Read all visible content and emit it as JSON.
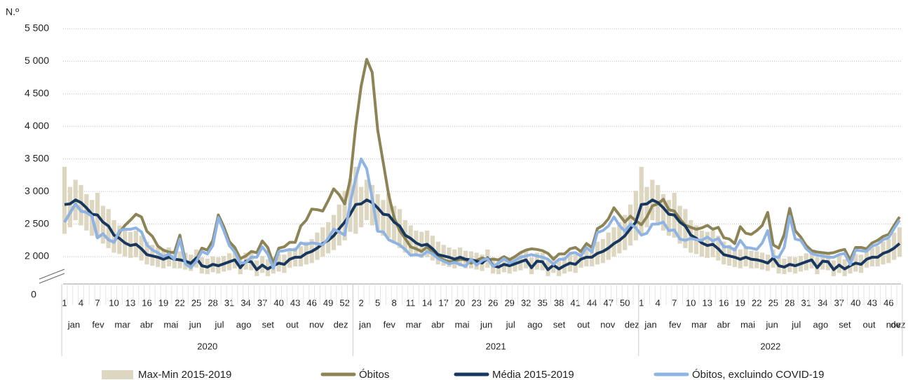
{
  "chart_data": {
    "type": "line",
    "y_unit_label": "N.º",
    "y_break_label": "0",
    "ylim": [
      1580,
      5500
    ],
    "yticks": [
      {
        "value": 2000,
        "label": "2 000"
      },
      {
        "value": 2500,
        "label": "2 500"
      },
      {
        "value": 3000,
        "label": "3 000"
      },
      {
        "value": 3500,
        "label": "3 500"
      },
      {
        "value": 4000,
        "label": "4 000"
      },
      {
        "value": 4500,
        "label": "4 500"
      },
      {
        "value": 5000,
        "label": "5 000"
      },
      {
        "value": 5500,
        "label": "5 500"
      }
    ],
    "grid": true,
    "years": [
      {
        "label": "2020",
        "weeks": [
          1,
          null,
          null,
          4,
          null,
          null,
          7,
          null,
          null,
          10,
          null,
          null,
          13,
          null,
          null,
          16,
          null,
          null,
          19,
          null,
          null,
          22,
          null,
          null,
          25,
          null,
          null,
          28,
          null,
          null,
          31,
          null,
          null,
          34,
          null,
          null,
          37,
          null,
          null,
          40,
          null,
          null,
          43,
          null,
          null,
          46,
          null,
          null,
          49,
          null,
          null,
          52,
          null
        ],
        "months": [
          "jan",
          "fev",
          "mar",
          "abr",
          "mai",
          "jun",
          "jul",
          "ago",
          "set",
          "out",
          "nov",
          "dez"
        ]
      },
      {
        "label": "2021",
        "weeks": [
          null,
          2,
          null,
          null,
          5,
          null,
          null,
          8,
          null,
          null,
          11,
          null,
          null,
          14,
          null,
          null,
          17,
          null,
          null,
          20,
          null,
          null,
          23,
          null,
          null,
          26,
          null,
          null,
          29,
          null,
          null,
          32,
          null,
          null,
          35,
          null,
          null,
          38,
          null,
          null,
          41,
          null,
          null,
          44,
          null,
          null,
          47,
          null,
          null,
          50,
          null,
          null
        ],
        "months": [
          "jan",
          "fev",
          "mar",
          "abr",
          "mai",
          "jun",
          "jul",
          "ago",
          "set",
          "out",
          "nov",
          "dez"
        ]
      },
      {
        "label": "2022",
        "weeks": [
          1,
          null,
          null,
          4,
          null,
          null,
          7,
          null,
          null,
          10,
          null,
          null,
          13,
          null,
          null,
          16,
          null,
          null,
          19,
          null,
          null,
          22,
          null,
          null,
          25,
          null,
          null,
          28,
          null,
          null,
          31,
          null,
          null,
          34,
          null,
          null,
          37,
          null,
          null,
          40,
          null,
          null,
          43,
          null,
          null,
          46,
          null,
          null
        ],
        "months": [
          "jan",
          "fev",
          "mar",
          "abr",
          "mai",
          "jun",
          "jul",
          "ago",
          "set",
          "out",
          "nov",
          "dez"
        ]
      }
    ],
    "series": [
      {
        "name": "Max-Min 2015-2019",
        "color": "#ddd6c1",
        "kind": "range",
        "high": [
          3380,
          3070,
          3180,
          3100,
          2960,
          2870,
          2980,
          2780,
          2730,
          2560,
          2480,
          2400,
          2380,
          2400,
          2320,
          2230,
          2180,
          2140,
          2110,
          2140,
          2090,
          2080,
          2060,
          2030,
          2110,
          1990,
          1970,
          2000,
          1990,
          2010,
          2050,
          2090,
          1990,
          2060,
          2060,
          1940,
          2010,
          1960,
          2000,
          2040,
          2030,
          2100,
          2140,
          2160,
          2230,
          2270,
          2370,
          2450,
          2530,
          2640,
          2800,
          3010,
          3200,
          3380,
          3070,
          3180,
          3100,
          2960,
          2870,
          2980,
          2780,
          2730,
          2560,
          2480,
          2400,
          2380,
          2400,
          2320,
          2230,
          2180,
          2140,
          2110,
          2140,
          2090,
          2080,
          2060,
          2030,
          2110,
          1990,
          1970,
          2000,
          1990,
          2010,
          2050,
          2090,
          1990,
          2060,
          2060,
          1940,
          2010,
          1960,
          2000,
          2040,
          2030,
          2100,
          2140,
          2160,
          2230,
          2270,
          2370,
          2450,
          2530,
          2640,
          2800,
          3010,
          3380,
          3070,
          3180,
          3100,
          2960,
          2870,
          2980,
          2780,
          2730,
          2560,
          2480,
          2400,
          2380,
          2400,
          2320,
          2230,
          2180,
          2140,
          2110,
          2140,
          2090,
          2080,
          2060,
          2030,
          2110,
          1990,
          1970,
          2000,
          1990,
          2010,
          2050,
          2090,
          1990,
          2060,
          2060,
          1940,
          2010,
          1960,
          2000,
          2040,
          2030,
          2100,
          2140,
          2160,
          2230,
          2270,
          2370,
          2450
        ],
        "low": [
          2350,
          2450,
          2560,
          2480,
          2400,
          2320,
          2290,
          2200,
          2130,
          2060,
          2040,
          2000,
          1980,
          1990,
          1940,
          1880,
          1860,
          1840,
          1820,
          1850,
          1820,
          1820,
          1800,
          1780,
          1830,
          1740,
          1730,
          1760,
          1740,
          1770,
          1790,
          1820,
          1730,
          1800,
          1790,
          1700,
          1750,
          1700,
          1740,
          1770,
          1750,
          1830,
          1850,
          1850,
          1880,
          1900,
          1950,
          2000,
          2050,
          2100,
          2170,
          2250,
          2380,
          2350,
          2450,
          2560,
          2480,
          2400,
          2320,
          2290,
          2200,
          2130,
          2060,
          2040,
          2000,
          1980,
          1990,
          1940,
          1880,
          1860,
          1840,
          1820,
          1850,
          1820,
          1820,
          1800,
          1780,
          1830,
          1740,
          1730,
          1760,
          1740,
          1770,
          1790,
          1820,
          1730,
          1800,
          1790,
          1700,
          1750,
          1700,
          1740,
          1770,
          1750,
          1830,
          1850,
          1850,
          1880,
          1900,
          1950,
          2000,
          2050,
          2100,
          2170,
          2250,
          2350,
          2450,
          2560,
          2480,
          2400,
          2320,
          2290,
          2200,
          2130,
          2060,
          2040,
          2000,
          1980,
          1990,
          1940,
          1880,
          1860,
          1840,
          1820,
          1850,
          1820,
          1820,
          1800,
          1780,
          1830,
          1740,
          1730,
          1760,
          1740,
          1770,
          1790,
          1820,
          1730,
          1800,
          1790,
          1700,
          1750,
          1700,
          1740,
          1770,
          1750,
          1830,
          1850,
          1850,
          1880,
          1900,
          1950,
          2000
        ]
      },
      {
        "name": "Óbitos",
        "color": "#8c8456",
        "values": [
          2530,
          2670,
          2810,
          2700,
          2680,
          2620,
          2290,
          2350,
          2260,
          2220,
          2370,
          2480,
          2560,
          2650,
          2610,
          2390,
          2310,
          2160,
          2100,
          2070,
          2060,
          2330,
          1930,
          1870,
          1960,
          2130,
          2100,
          2250,
          2640,
          2460,
          2230,
          2140,
          1970,
          2010,
          2080,
          2060,
          2240,
          2140,
          1890,
          2130,
          2150,
          2220,
          2220,
          2470,
          2560,
          2730,
          2720,
          2700,
          2860,
          3040,
          2950,
          2810,
          3180,
          4000,
          4620,
          5030,
          4830,
          3950,
          3450,
          2950,
          2600,
          2400,
          2280,
          2150,
          2120,
          2080,
          2150,
          2070,
          2000,
          1950,
          1920,
          1930,
          1960,
          1950,
          1900,
          1940,
          1980,
          1950,
          1960,
          1950,
          2000,
          1950,
          2000,
          2060,
          2100,
          2120,
          2110,
          2090,
          2050,
          1960,
          2040,
          2040,
          2120,
          2140,
          2080,
          2200,
          2140,
          2430,
          2480,
          2580,
          2750,
          2640,
          2530,
          2620,
          2550,
          2490,
          2610,
          2780,
          2810,
          2880,
          2720,
          2700,
          2580,
          2480,
          2450,
          2420,
          2440,
          2480,
          2420,
          2450,
          2290,
          2270,
          2200,
          2460,
          2360,
          2340,
          2400,
          2480,
          2680,
          2180,
          2130,
          2340,
          2740,
          2400,
          2300,
          2170,
          2090,
          2070,
          2060,
          2050,
          2060,
          2090,
          2110,
          1950,
          2140,
          2140,
          2120,
          2210,
          2250,
          2310,
          2340,
          2480,
          2610
        ]
      },
      {
        "name": "Média 2015-2019",
        "color": "#17375e",
        "values": [
          2800,
          2810,
          2870,
          2830,
          2750,
          2650,
          2640,
          2530,
          2470,
          2330,
          2280,
          2210,
          2170,
          2190,
          2120,
          2030,
          2010,
          1990,
          1960,
          1990,
          1960,
          1950,
          1930,
          1900,
          1980,
          1860,
          1840,
          1880,
          1860,
          1890,
          1920,
          1950,
          1830,
          1930,
          1920,
          1800,
          1870,
          1810,
          1860,
          1900,
          1880,
          1960,
          1990,
          1990,
          2050,
          2080,
          2130,
          2200,
          2250,
          2320,
          2430,
          2530,
          2650,
          2800,
          2810,
          2870,
          2830,
          2750,
          2650,
          2640,
          2530,
          2470,
          2330,
          2280,
          2210,
          2170,
          2190,
          2120,
          2030,
          2010,
          1990,
          1960,
          1990,
          1960,
          1950,
          1930,
          1900,
          1980,
          1860,
          1840,
          1880,
          1860,
          1890,
          1920,
          1950,
          1830,
          1930,
          1920,
          1800,
          1870,
          1810,
          1860,
          1900,
          1880,
          1960,
          1990,
          1990,
          2050,
          2080,
          2130,
          2200,
          2250,
          2320,
          2430,
          2530,
          2800,
          2810,
          2870,
          2830,
          2750,
          2650,
          2640,
          2530,
          2470,
          2330,
          2280,
          2210,
          2170,
          2190,
          2120,
          2030,
          2010,
          1990,
          1960,
          1990,
          1960,
          1950,
          1930,
          1900,
          1980,
          1860,
          1840,
          1880,
          1860,
          1890,
          1920,
          1950,
          1830,
          1930,
          1920,
          1800,
          1870,
          1810,
          1860,
          1900,
          1880,
          1960,
          1990,
          1990,
          2050,
          2080,
          2130,
          2200
        ]
      },
      {
        "name": "Óbitos, excluindo COVID-19",
        "color": "#8fb4e3",
        "values": [
          2530,
          2670,
          2810,
          2700,
          2680,
          2620,
          2290,
          2350,
          2260,
          2220,
          2400,
          2420,
          2420,
          2440,
          2380,
          2180,
          2100,
          2060,
          2000,
          2040,
          1960,
          2270,
          1890,
          1830,
          1930,
          2080,
          2040,
          2170,
          2600,
          2400,
          2170,
          2070,
          1900,
          1910,
          1990,
          1990,
          2150,
          2040,
          1820,
          2080,
          2090,
          2110,
          2100,
          2210,
          2190,
          2210,
          2200,
          2180,
          2280,
          2420,
          2380,
          2330,
          2820,
          3200,
          3500,
          3350,
          2900,
          2390,
          2380,
          2260,
          2220,
          2180,
          2110,
          2020,
          2030,
          2010,
          2080,
          2040,
          1970,
          1930,
          1890,
          1910,
          1880,
          1850,
          1960,
          1870,
          1940,
          1970,
          1850,
          1900,
          1970,
          1900,
          1940,
          1990,
          2010,
          2030,
          2010,
          1990,
          1960,
          1880,
          1960,
          1960,
          2050,
          2060,
          2010,
          2140,
          2070,
          2370,
          2400,
          2470,
          2610,
          2480,
          2390,
          2500,
          2440,
          2330,
          2360,
          2500,
          2500,
          2530,
          2400,
          2410,
          2270,
          2250,
          2280,
          2260,
          2250,
          2300,
          2240,
          2280,
          2150,
          2150,
          2100,
          2250,
          2140,
          2130,
          2110,
          2210,
          2400,
          2000,
          1990,
          2140,
          2620,
          2270,
          2250,
          2120,
          2050,
          2020,
          2010,
          1990,
          1990,
          2030,
          2050,
          1880,
          2100,
          2090,
          2080,
          2160,
          2190,
          2260,
          2290,
          2430,
          2560
        ]
      }
    ]
  }
}
